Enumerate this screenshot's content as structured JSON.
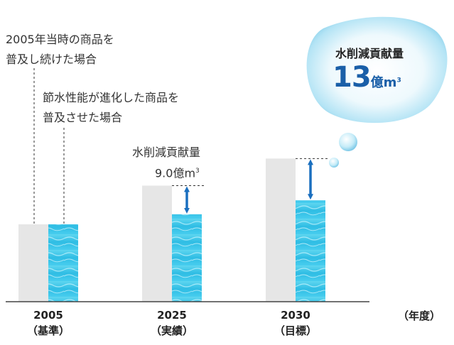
{
  "chart_data": {
    "type": "bar",
    "categories": [
      "2005",
      "2025",
      "2030"
    ],
    "category_notes": [
      "（基準）",
      "（実績）",
      "（目標）"
    ],
    "x_unit": "（年度）",
    "series": [
      {
        "name": "2005年当時の商品を普及し続けた場合",
        "values": [
          100,
          150,
          185
        ],
        "color": "#e6e6e6"
      },
      {
        "name": "節水性能が進化した商品を普及させた場合",
        "values": [
          100,
          113,
          131
        ],
        "color": "#3cc7e8"
      }
    ],
    "annotations": [
      {
        "year": "2025",
        "title": "水削減貢献量",
        "value": "9.0",
        "unit": "億m",
        "unit_sup": "3"
      },
      {
        "year": "2030",
        "title": "水削減貢献量",
        "value": "13",
        "unit": "億m",
        "unit_sup": "3"
      }
    ],
    "legend_labels": {
      "conventional_line1": "2005年当時の商品を",
      "conventional_line2": "普及し続けた場合",
      "improved_line1": "節水性能が進化した商品を",
      "improved_line2": "普及させた場合"
    },
    "colors": {
      "arrow": "#1a6fbf",
      "baseline": "#444444"
    }
  }
}
